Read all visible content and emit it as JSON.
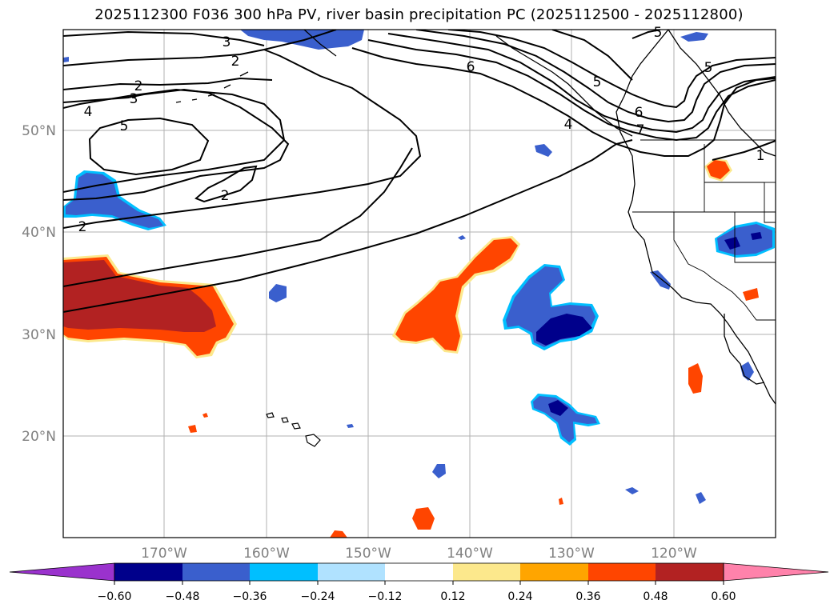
{
  "title": "2025112300 F036 300 hPa PV, river basin precipitation PC (2025112500 - 2025112800)",
  "map": {
    "lat_labels": [
      "50°N",
      "40°N",
      "30°N",
      "20°N"
    ],
    "lon_labels": [
      "170°W",
      "160°W",
      "150°W",
      "140°W",
      "130°W",
      "120°W"
    ],
    "contour_labels": [
      "3",
      "2",
      "2",
      "3",
      "4",
      "5",
      "2",
      "2",
      "6",
      "5",
      "5",
      "5",
      "6",
      "4",
      "7",
      "1"
    ]
  },
  "colorbar": {
    "colors": [
      "#9a32cd",
      "#00008b",
      "#3a5fcd",
      "#00bfff",
      "#b0e2ff",
      "#ffffff",
      "#fce88c",
      "#ffa500",
      "#ff4500",
      "#b22222",
      "#ff82ab"
    ],
    "tick_labels": [
      "−0.60",
      "−0.48",
      "−0.36",
      "−0.24",
      "−0.12",
      "0.12",
      "0.24",
      "0.36",
      "0.48",
      "0.60"
    ]
  }
}
